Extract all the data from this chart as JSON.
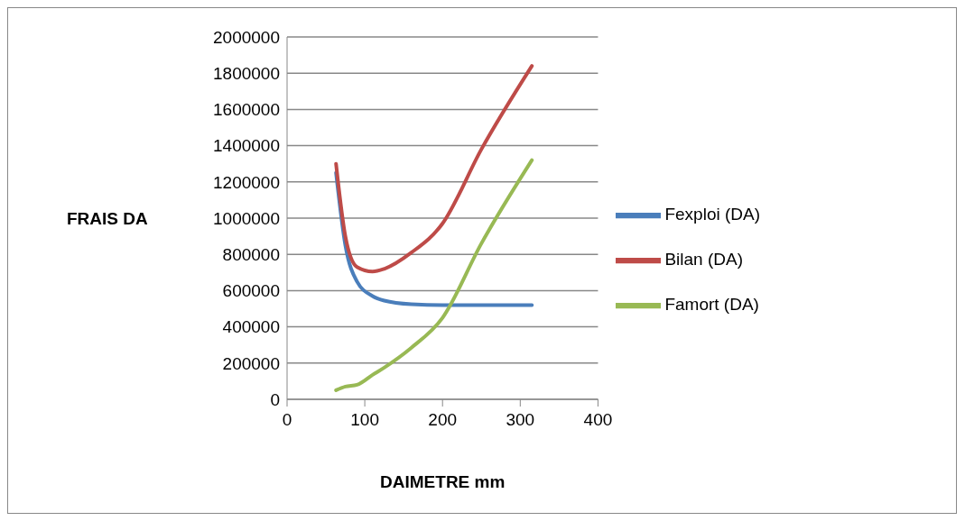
{
  "chart_data": {
    "type": "line",
    "xlabel": "DAIMETRE mm",
    "ylabel": "FRAIS DA",
    "x": [
      63,
      75,
      90,
      110,
      125,
      160,
      200,
      250,
      315
    ],
    "series": [
      {
        "name": "Fexploi (DA)",
        "color": "#4a7ebb",
        "values": [
          1250000,
          850000,
          650000,
          570000,
          545000,
          525000,
          520000,
          520000,
          520000
        ]
      },
      {
        "name": "Bilan (DA)",
        "color": "#be4b48",
        "values": [
          1300000,
          900000,
          730000,
          705000,
          720000,
          810000,
          970000,
          1380000,
          1840000
        ]
      },
      {
        "name": "Famort (DA)",
        "color": "#98b954",
        "values": [
          50000,
          70000,
          80000,
          135000,
          175000,
          285000,
          450000,
          860000,
          1320000
        ]
      }
    ],
    "xlim": [
      0,
      400
    ],
    "xticks": [
      0,
      100,
      200,
      300,
      400
    ],
    "ylim": [
      0,
      2000000
    ],
    "yticks": [
      0,
      200000,
      400000,
      600000,
      800000,
      1000000,
      1200000,
      1400000,
      1600000,
      1800000,
      2000000
    ],
    "grid": "y",
    "legend": "right",
    "marker": "none",
    "line_style": "solid"
  }
}
